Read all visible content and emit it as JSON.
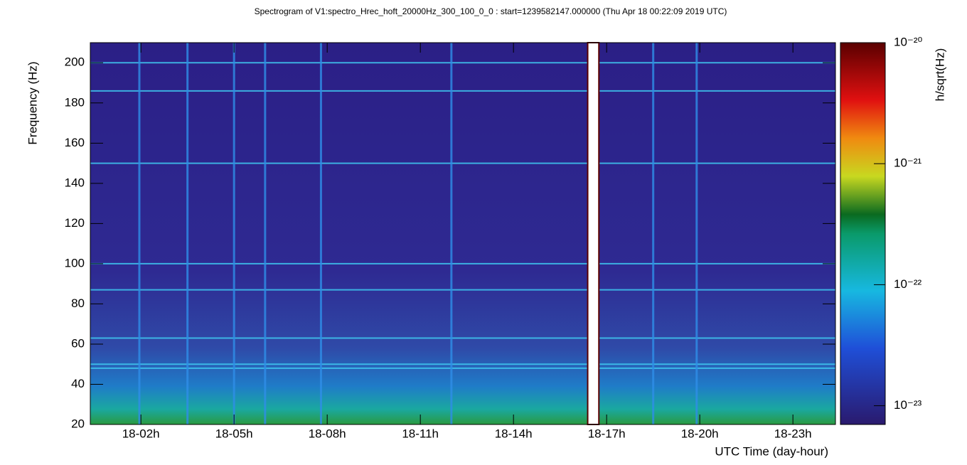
{
  "chart_data": {
    "type": "spectrogram",
    "title": "Spectrogram of V1:spectro_Hrec_hoft_20000Hz_300_100_0_0 : start=1239582147.000000 (Thu Apr 18 00:22:09 2019 UTC)",
    "xlabel": "UTC Time (day-hour)",
    "ylabel": "Frequency (Hz)",
    "colorbar_label": "h/sqrt(Hz)",
    "xlim": [
      0.37,
      24.37
    ],
    "xticks": [
      {
        "value": 2,
        "label": "18-02h"
      },
      {
        "value": 5,
        "label": "18-05h"
      },
      {
        "value": 8,
        "label": "18-08h"
      },
      {
        "value": 11,
        "label": "18-11h"
      },
      {
        "value": 14,
        "label": "18-14h"
      },
      {
        "value": 17,
        "label": "18-17h"
      },
      {
        "value": 20,
        "label": "18-20h"
      },
      {
        "value": 23,
        "label": "18-23h"
      }
    ],
    "ylim": [
      20,
      210
    ],
    "yticks": [
      20,
      40,
      60,
      80,
      100,
      120,
      140,
      160,
      180,
      200
    ],
    "zlim": [
      7e-24,
      1e-20
    ],
    "zlog": true,
    "zticks": [
      {
        "value": 1e-20,
        "label": "10⁻²⁰"
      },
      {
        "value": 1e-21,
        "label": "10⁻²¹"
      },
      {
        "value": 1e-22,
        "label": "10⁻²²"
      },
      {
        "value": 1e-23,
        "label": "10⁻²³"
      }
    ],
    "horizontal_lines_hz": [
      200,
      186,
      150,
      100,
      87,
      63,
      50,
      48
    ],
    "vertical_transients_h": [
      1.95,
      3.5,
      5.0,
      6.0,
      7.8,
      12.0,
      18.5,
      19.9
    ],
    "gap_h": [
      16.39,
      16.75
    ]
  }
}
